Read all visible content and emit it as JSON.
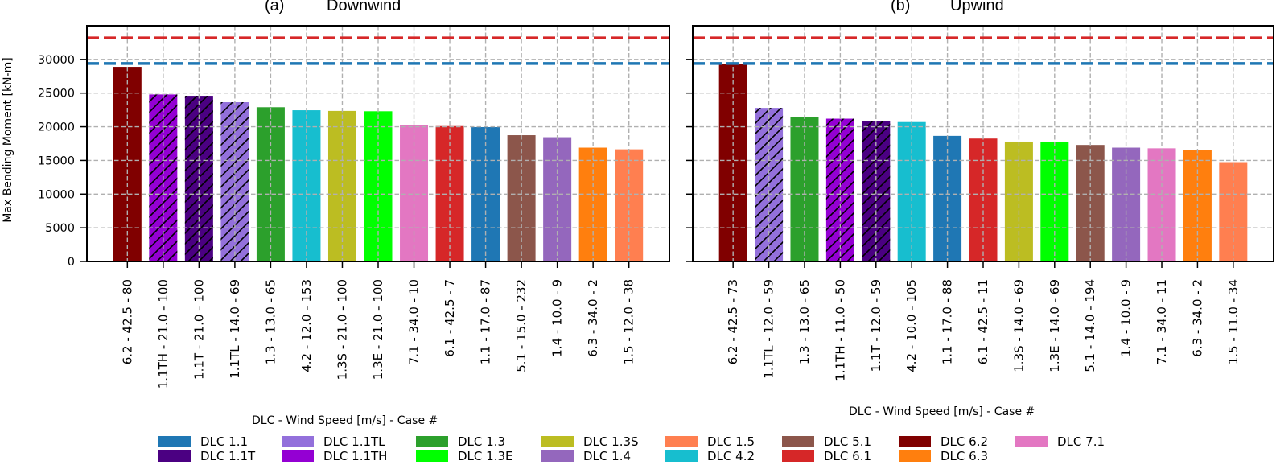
{
  "chart_data": [
    {
      "type": "bar",
      "title_prefix": "(a)",
      "title": "Downwind",
      "xlabel": "DLC - Wind Speed [m/s] - Case #",
      "ylabel": "Max Bending Moment [kN-m]",
      "ylim": [
        0,
        35000
      ],
      "yticks": [
        0,
        5000,
        10000,
        15000,
        20000,
        25000,
        30000
      ],
      "grid": true,
      "categories": [
        "6.2 - 42.5 - 80",
        "1.1TH - 21.0 - 100",
        "1.1T - 21.0 - 100",
        "1.1TL - 14.0 - 69",
        "1.3 - 13.0 - 65",
        "4.2 - 12.0 - 153",
        "1.3S - 21.0 - 100",
        "1.3E - 21.0 - 100",
        "7.1 - 34.0 - 10",
        "6.1 - 42.5 - 7",
        "1.1 - 17.0 - 87",
        "5.1 - 15.0 - 232",
        "1.4 - 10.0 - 9",
        "6.3 - 34.0 - 2",
        "1.5 - 12.0 - 38"
      ],
      "dlc": [
        "6.2",
        "1.1TH",
        "1.1T",
        "1.1TL",
        "1.3",
        "4.2",
        "1.3S",
        "1.3E",
        "7.1",
        "6.1",
        "1.1",
        "5.1",
        "1.4",
        "6.3",
        "1.5"
      ],
      "values": [
        28900,
        24800,
        24600,
        23650,
        22900,
        22450,
        22350,
        22300,
        20300,
        20100,
        19950,
        18750,
        18450,
        16900,
        16650
      ],
      "reference_lines": [
        {
          "value": 33200,
          "color": "#d62728"
        },
        {
          "value": 29400,
          "color": "#1f77b4"
        }
      ]
    },
    {
      "type": "bar",
      "title_prefix": "(b)",
      "title": "Upwind",
      "xlabel": "DLC - Wind Speed [m/s] - Case #",
      "ylim": [
        0,
        35000
      ],
      "yticks": [
        0,
        5000,
        10000,
        15000,
        20000,
        25000,
        30000
      ],
      "grid": true,
      "categories": [
        "6.2 - 42.5 - 73",
        "1.1TL - 12.0 - 59",
        "1.3 - 13.0 - 65",
        "1.1TH - 11.0 - 50",
        "1.1T - 12.0 - 59",
        "4.2 - 10.0 - 105",
        "1.1 - 17.0 - 88",
        "6.1 - 42.5 - 11",
        "1.3S - 14.0 - 69",
        "1.3E - 14.0 - 69",
        "5.1 - 14.0 - 194",
        "1.4 - 10.0 - 9",
        "7.1 - 34.0 - 11",
        "6.3 - 34.0 - 2",
        "1.5 - 11.0 - 34"
      ],
      "dlc": [
        "6.2",
        "1.1TL",
        "1.3",
        "1.1TH",
        "1.1T",
        "4.2",
        "1.1",
        "6.1",
        "1.3S",
        "1.3E",
        "5.1",
        "1.4",
        "7.1",
        "6.3",
        "1.5"
      ],
      "values": [
        29350,
        22800,
        21400,
        21200,
        20850,
        20700,
        18650,
        18250,
        17800,
        17800,
        17300,
        16900,
        16800,
        16500,
        14750
      ],
      "reference_lines": [
        {
          "value": 33200,
          "color": "#d62728"
        },
        {
          "value": 29400,
          "color": "#1f77b4"
        }
      ]
    }
  ],
  "legend": {
    "placement": "bottom",
    "entries": [
      {
        "label": "DLC 1.1",
        "key": "1.1",
        "color": "#1f77b4",
        "hatched": false
      },
      {
        "label": "DLC 1.1T",
        "key": "1.1T",
        "color": "#4b0082",
        "hatched": true
      },
      {
        "label": "DLC 1.1TL",
        "key": "1.1TL",
        "color": "#9370db",
        "hatched": true
      },
      {
        "label": "DLC 1.1TH",
        "key": "1.1TH",
        "color": "#9400d3",
        "hatched": true
      },
      {
        "label": "DLC 1.3",
        "key": "1.3",
        "color": "#2ca02c",
        "hatched": false
      },
      {
        "label": "DLC 1.3E",
        "key": "1.3E",
        "color": "#00ff00",
        "hatched": false
      },
      {
        "label": "DLC 1.3S",
        "key": "1.3S",
        "color": "#bcbd22",
        "hatched": false
      },
      {
        "label": "DLC 1.4",
        "key": "1.4",
        "color": "#9467bd",
        "hatched": false
      },
      {
        "label": "DLC 1.5",
        "key": "1.5",
        "color": "#ff7f50",
        "hatched": false
      },
      {
        "label": "DLC 4.2",
        "key": "4.2",
        "color": "#17becf",
        "hatched": false
      },
      {
        "label": "DLC 5.1",
        "key": "5.1",
        "color": "#8c564b",
        "hatched": false
      },
      {
        "label": "DLC 6.1",
        "key": "6.1",
        "color": "#d62728",
        "hatched": false
      },
      {
        "label": "DLC 6.2",
        "key": "6.2",
        "color": "#800000",
        "hatched": false
      },
      {
        "label": "DLC 6.3",
        "key": "6.3",
        "color": "#ff7f0e",
        "hatched": false
      },
      {
        "label": "DLC 7.1",
        "key": "7.1",
        "color": "#e377c2",
        "hatched": false
      }
    ]
  }
}
